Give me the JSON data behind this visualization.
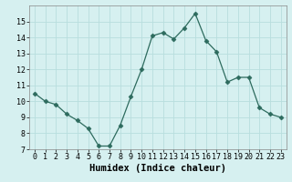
{
  "x": [
    0,
    1,
    2,
    3,
    4,
    5,
    6,
    7,
    8,
    9,
    10,
    11,
    12,
    13,
    14,
    15,
    16,
    17,
    18,
    19,
    20,
    21,
    22,
    23
  ],
  "y": [
    10.5,
    10.0,
    9.8,
    9.2,
    8.8,
    8.3,
    7.2,
    7.2,
    8.5,
    10.3,
    12.0,
    14.1,
    14.3,
    13.9,
    14.6,
    15.5,
    13.8,
    13.1,
    11.2,
    11.5,
    11.5,
    9.6,
    9.2,
    9.0
  ],
  "line_color": "#2d6b5e",
  "marker": "D",
  "marker_size": 2.5,
  "background_color": "#d6f0f0",
  "grid_color": "#b8dede",
  "xlabel": "Humidex (Indice chaleur)",
  "xlabel_fontsize": 7.5,
  "tick_fontsize": 6,
  "xlim": [
    -0.5,
    23.5
  ],
  "ylim": [
    7,
    16
  ],
  "yticks": [
    7,
    8,
    9,
    10,
    11,
    12,
    13,
    14,
    15
  ],
  "xticks": [
    0,
    1,
    2,
    3,
    4,
    5,
    6,
    7,
    8,
    9,
    10,
    11,
    12,
    13,
    14,
    15,
    16,
    17,
    18,
    19,
    20,
    21,
    22,
    23
  ]
}
